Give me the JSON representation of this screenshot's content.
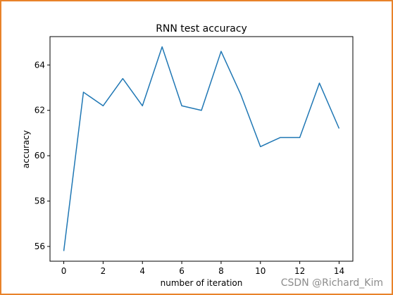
{
  "chart_data": {
    "type": "line",
    "title": "RNN test accuracy",
    "xlabel": "number of iteration",
    "ylabel": "accuracy",
    "x": [
      0,
      1,
      2,
      3,
      4,
      5,
      6,
      7,
      8,
      9,
      10,
      11,
      12,
      13,
      14
    ],
    "series": [
      {
        "values": [
          55.8,
          62.8,
          62.2,
          63.4,
          62.2,
          64.8,
          62.2,
          62.0,
          64.6,
          62.7,
          60.4,
          60.8,
          60.8,
          63.2,
          61.2
        ],
        "color": "#1f77b4"
      }
    ],
    "xlim": [
      -0.7,
      14.7
    ],
    "ylim": [
      55.35,
      65.25
    ],
    "xticks": [
      "0",
      "2",
      "4",
      "6",
      "8",
      "10",
      "12",
      "14"
    ],
    "yticks": [
      "56",
      "58",
      "60",
      "62",
      "64"
    ],
    "grid": false,
    "legend": "none"
  },
  "watermark": "CSDN @Richard_Kim",
  "frame_color": "#e8832a"
}
